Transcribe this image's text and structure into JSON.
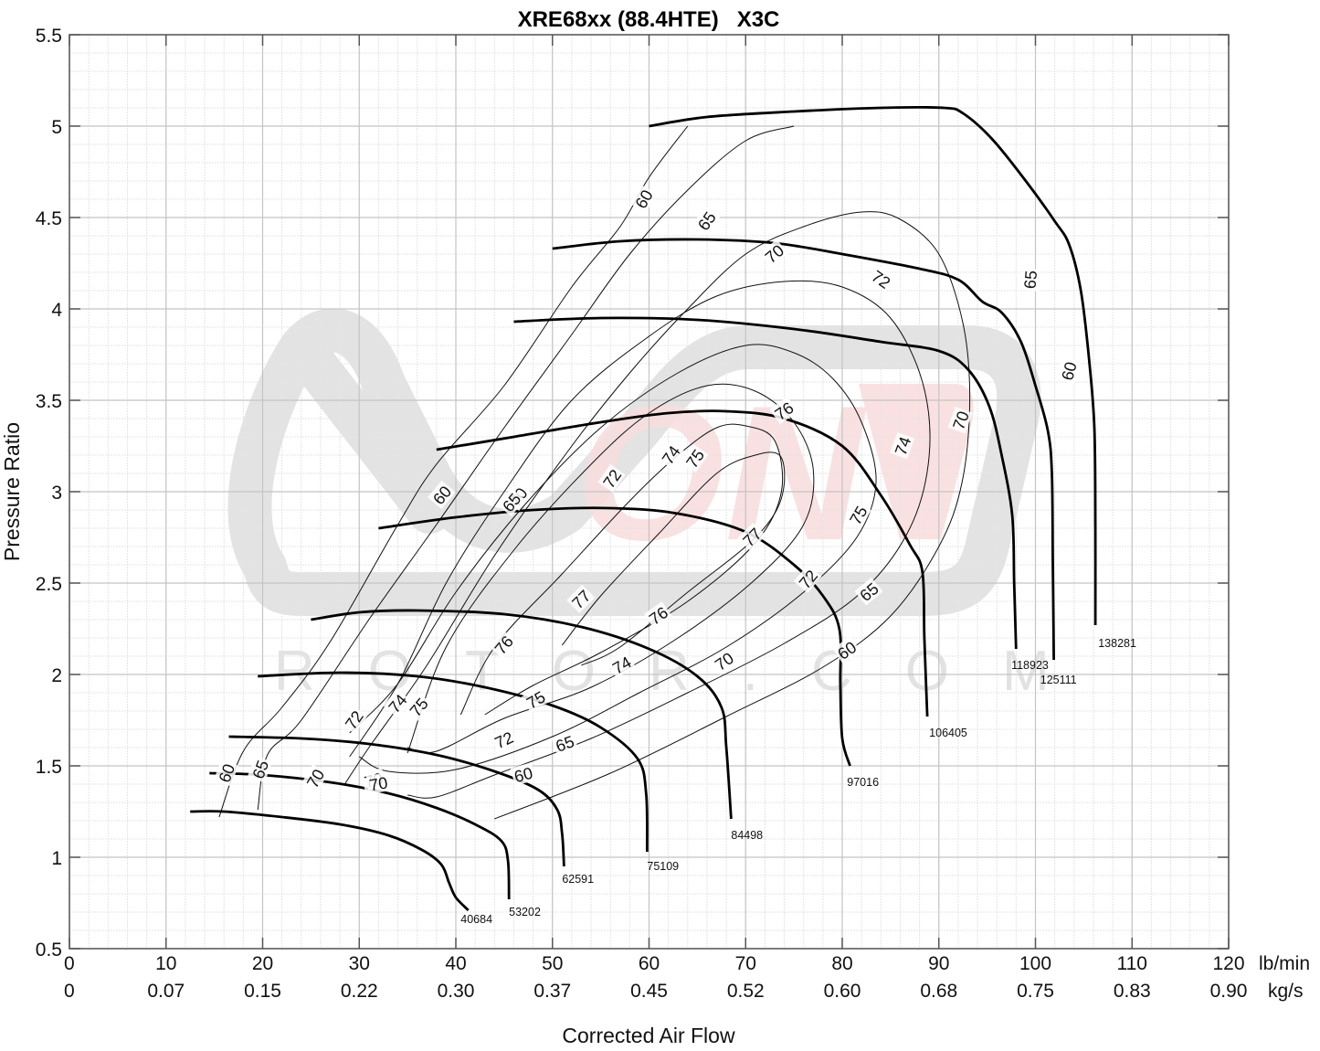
{
  "chart_data": {
    "type": "line",
    "subtype": "compressor-map",
    "title": "XRE68xx (88.4HTE)   X3C",
    "xlabel": "Corrected Air Flow",
    "ylabel": "Pressure Ratio",
    "x_unit_primary": "lb/min",
    "x_unit_secondary": "kg/s",
    "xlim": [
      0,
      120
    ],
    "ylim": [
      0.5,
      5.5
    ],
    "x_ticks": [
      0,
      10,
      20,
      30,
      40,
      50,
      60,
      70,
      80,
      90,
      100,
      110,
      120
    ],
    "x_ticks_secondary": [
      "0",
      "0.07",
      "0.15",
      "0.22",
      "0.30",
      "0.37",
      "0.45",
      "0.52",
      "0.60",
      "0.68",
      "0.75",
      "0.83",
      "0.90"
    ],
    "y_ticks": [
      "0.5",
      "1",
      "1.5",
      "2",
      "2.5",
      "3",
      "3.5",
      "4",
      "4.5",
      "5",
      "5.5"
    ],
    "grid": {
      "major": true,
      "minor": true,
      "minor_x_step": 2,
      "minor_y_step": 0.1
    },
    "legend": "none",
    "watermark": "ROTOR.COM",
    "speed_lines": [
      {
        "name": "40684",
        "label_at": [
          40.5,
          0.64
        ],
        "points": [
          [
            12.5,
            1.25
          ],
          [
            16,
            1.25
          ],
          [
            22,
            1.22
          ],
          [
            28,
            1.18
          ],
          [
            33,
            1.12
          ],
          [
            36.5,
            1.04
          ],
          [
            38.5,
            0.96
          ],
          [
            39.3,
            0.86
          ],
          [
            40,
            0.78
          ],
          [
            41.3,
            0.71
          ]
        ]
      },
      {
        "name": "53202",
        "label_at": [
          45.5,
          0.68
        ],
        "points": [
          [
            14.5,
            1.46
          ],
          [
            20,
            1.45
          ],
          [
            27,
            1.41
          ],
          [
            33,
            1.35
          ],
          [
            38,
            1.27
          ],
          [
            42,
            1.18
          ],
          [
            44.7,
            1.09
          ],
          [
            45.4,
            0.98
          ],
          [
            45.5,
            0.77
          ]
        ]
      },
      {
        "name": "62591",
        "label_at": [
          51,
          0.86
        ],
        "points": [
          [
            16.5,
            1.66
          ],
          [
            24,
            1.65
          ],
          [
            31,
            1.62
          ],
          [
            38,
            1.56
          ],
          [
            44,
            1.47
          ],
          [
            48.5,
            1.37
          ],
          [
            50.5,
            1.26
          ],
          [
            51,
            1.13
          ],
          [
            51.2,
            0.95
          ]
        ]
      },
      {
        "name": "75109",
        "label_at": [
          59.8,
          0.93
        ],
        "points": [
          [
            19.5,
            1.99
          ],
          [
            28,
            2.01
          ],
          [
            36,
            1.99
          ],
          [
            43,
            1.93
          ],
          [
            50,
            1.83
          ],
          [
            55,
            1.71
          ],
          [
            58.8,
            1.54
          ],
          [
            59.7,
            1.35
          ],
          [
            59.8,
            1.03
          ]
        ]
      },
      {
        "name": "84498",
        "label_at": [
          68.5,
          1.1
        ],
        "points": [
          [
            25,
            2.3
          ],
          [
            30,
            2.34
          ],
          [
            36,
            2.35
          ],
          [
            45,
            2.33
          ],
          [
            53,
            2.26
          ],
          [
            60,
            2.14
          ],
          [
            65,
            1.99
          ],
          [
            67.5,
            1.82
          ],
          [
            68,
            1.6
          ],
          [
            68.5,
            1.21
          ]
        ]
      },
      {
        "name": "97016",
        "label_at": [
          80.5,
          1.39
        ],
        "points": [
          [
            32,
            2.8
          ],
          [
            40,
            2.86
          ],
          [
            48,
            2.9
          ],
          [
            56,
            2.91
          ],
          [
            63,
            2.88
          ],
          [
            70,
            2.78
          ],
          [
            75,
            2.6
          ],
          [
            78,
            2.43
          ],
          [
            79.7,
            2.25
          ],
          [
            79.8,
            1.95
          ],
          [
            80,
            1.65
          ],
          [
            80.8,
            1.5
          ]
        ]
      },
      {
        "name": "106405",
        "label_at": [
          89,
          1.66
        ],
        "points": [
          [
            38,
            3.23
          ],
          [
            46,
            3.3
          ],
          [
            55,
            3.38
          ],
          [
            62,
            3.43
          ],
          [
            68,
            3.44
          ],
          [
            74,
            3.4
          ],
          [
            80,
            3.25
          ],
          [
            84,
            2.98
          ],
          [
            87,
            2.71
          ],
          [
            88.3,
            2.56
          ],
          [
            88.5,
            2.2
          ],
          [
            88.8,
            1.77
          ]
        ]
      },
      {
        "name": "118923",
        "label_at": [
          97.5,
          2.03
        ],
        "points": [
          [
            46,
            3.93
          ],
          [
            55,
            3.95
          ],
          [
            65,
            3.94
          ],
          [
            75,
            3.89
          ],
          [
            84,
            3.82
          ],
          [
            90,
            3.77
          ],
          [
            93,
            3.67
          ],
          [
            95.2,
            3.47
          ],
          [
            96.5,
            3.2
          ],
          [
            97.6,
            2.87
          ],
          [
            97.8,
            2.5
          ],
          [
            98,
            2.14
          ]
        ]
      },
      {
        "name": "125111",
        "label_at": [
          100.5,
          1.95
        ],
        "points": [
          [
            50,
            4.33
          ],
          [
            57,
            4.37
          ],
          [
            65,
            4.38
          ],
          [
            73,
            4.36
          ],
          [
            80,
            4.3
          ],
          [
            88,
            4.22
          ],
          [
            92,
            4.16
          ],
          [
            94.5,
            4.04
          ],
          [
            96.5,
            3.98
          ],
          [
            98.5,
            3.82
          ],
          [
            100,
            3.58
          ],
          [
            101.3,
            3.33
          ],
          [
            101.7,
            3.1
          ],
          [
            101.8,
            2.62
          ],
          [
            101.9,
            2.08
          ]
        ]
      },
      {
        "name": "138281",
        "label_at": [
          106.5,
          2.15
        ],
        "points": [
          [
            60,
            5.0
          ],
          [
            66,
            5.05
          ],
          [
            75,
            5.08
          ],
          [
            84,
            5.1
          ],
          [
            90.5,
            5.1
          ],
          [
            92.5,
            5.07
          ],
          [
            95.5,
            4.93
          ],
          [
            99,
            4.7
          ],
          [
            102,
            4.48
          ],
          [
            103.5,
            4.35
          ],
          [
            104.7,
            4.1
          ],
          [
            105.5,
            3.75
          ],
          [
            106.1,
            3.35
          ],
          [
            106.2,
            2.8
          ],
          [
            106.2,
            2.27
          ]
        ]
      }
    ],
    "efficiency_islands": [
      {
        "efficiency": 60,
        "points": [
          [
            15.5,
            1.22
          ],
          [
            18,
            1.58
          ],
          [
            22,
            1.82
          ],
          [
            27,
            2.18
          ],
          [
            34,
            2.82
          ],
          [
            38,
            3.15
          ],
          [
            45,
            3.58
          ],
          [
            52,
            4.12
          ],
          [
            57,
            4.45
          ],
          [
            60,
            4.72
          ],
          [
            64,
            5.0
          ]
        ],
        "label_at": [
          59.5,
          4.6
        ]
      },
      {
        "efficiency": 65,
        "points": [
          [
            19.5,
            1.26
          ],
          [
            20.5,
            1.56
          ],
          [
            24,
            1.75
          ],
          [
            31,
            2.3
          ],
          [
            38,
            2.82
          ],
          [
            45,
            3.35
          ],
          [
            52,
            3.86
          ],
          [
            58,
            4.3
          ],
          [
            64,
            4.65
          ],
          [
            70,
            4.92
          ],
          [
            75,
            5.0
          ]
        ],
        "label_at": [
          66,
          4.5
        ]
      },
      {
        "efficiency": 70,
        "points": [
          [
            28.5,
            1.4
          ],
          [
            31,
            1.6
          ],
          [
            37,
            2.05
          ],
          [
            44,
            2.65
          ],
          [
            52,
            3.25
          ],
          [
            58,
            3.65
          ],
          [
            64,
            4.0
          ],
          [
            70,
            4.3
          ],
          [
            76,
            4.45
          ],
          [
            82,
            4.53
          ],
          [
            86,
            4.49
          ],
          [
            90,
            4.3
          ],
          [
            92.5,
            3.92
          ],
          [
            93.2,
            3.5
          ],
          [
            92.4,
            3.05
          ],
          [
            90,
            2.7
          ],
          [
            85,
            2.32
          ],
          [
            78,
            2.04
          ],
          [
            68,
            1.77
          ],
          [
            56,
            1.46
          ],
          [
            44,
            1.21
          ]
        ]
      },
      {
        "efficiency": 72,
        "points": [
          [
            29,
            1.55
          ],
          [
            34,
            1.95
          ],
          [
            39,
            2.5
          ],
          [
            45,
            3.0
          ],
          [
            52,
            3.5
          ],
          [
            60,
            3.85
          ],
          [
            67,
            4.07
          ],
          [
            74,
            4.15
          ],
          [
            80,
            4.12
          ],
          [
            85,
            3.95
          ],
          [
            88.3,
            3.6
          ],
          [
            89,
            3.2
          ],
          [
            87,
            2.8
          ],
          [
            82,
            2.45
          ],
          [
            74,
            2.17
          ],
          [
            64,
            1.9
          ],
          [
            54,
            1.65
          ],
          [
            44,
            1.45
          ],
          [
            38,
            1.33
          ],
          [
            35,
            1.34
          ]
        ]
      },
      {
        "efficiency": 74,
        "points": [
          [
            29,
            1.68
          ],
          [
            34,
            1.95
          ],
          [
            40,
            2.45
          ],
          [
            47,
            2.92
          ],
          [
            55,
            3.35
          ],
          [
            63,
            3.65
          ],
          [
            70,
            3.8
          ],
          [
            75,
            3.76
          ],
          [
            79,
            3.62
          ],
          [
            82,
            3.38
          ],
          [
            83.5,
            3.05
          ],
          [
            81.5,
            2.75
          ],
          [
            76,
            2.45
          ],
          [
            68,
            2.15
          ],
          [
            59,
            1.9
          ],
          [
            50,
            1.66
          ],
          [
            40,
            1.48
          ],
          [
            33,
            1.47
          ],
          [
            30,
            1.55
          ]
        ]
      },
      {
        "efficiency": 75,
        "points": [
          [
            35,
            1.57
          ],
          [
            39,
            2.15
          ],
          [
            46,
            2.68
          ],
          [
            54,
            3.15
          ],
          [
            60,
            3.43
          ],
          [
            66,
            3.58
          ],
          [
            71,
            3.55
          ],
          [
            75,
            3.38
          ],
          [
            77,
            3.12
          ],
          [
            76,
            2.82
          ],
          [
            71,
            2.52
          ],
          [
            63,
            2.2
          ],
          [
            54,
            1.93
          ],
          [
            45,
            1.76
          ],
          [
            38,
            1.58
          ],
          [
            35,
            1.6
          ]
        ]
      },
      {
        "efficiency": 76,
        "points": [
          [
            40.5,
            1.78
          ],
          [
            44,
            2.15
          ],
          [
            51,
            2.55
          ],
          [
            58,
            2.95
          ],
          [
            63,
            3.2
          ],
          [
            67,
            3.35
          ],
          [
            70,
            3.36
          ],
          [
            73,
            3.28
          ],
          [
            73.7,
            3.0
          ],
          [
            71,
            2.72
          ],
          [
            64,
            2.4
          ],
          [
            55,
            2.12
          ],
          [
            48,
            1.94
          ],
          [
            43,
            1.78
          ]
        ]
      },
      {
        "efficiency": 77,
        "points": [
          [
            51,
            2.16
          ],
          [
            55,
            2.43
          ],
          [
            61,
            2.77
          ],
          [
            67,
            3.1
          ],
          [
            71,
            3.2
          ],
          [
            73.5,
            3.2
          ],
          [
            74,
            3.05
          ],
          [
            73,
            2.88
          ],
          [
            70,
            2.7
          ],
          [
            64,
            2.45
          ],
          [
            57,
            2.15
          ],
          [
            53,
            2.05
          ]
        ]
      }
    ]
  },
  "ui": {
    "title": "XRE68xx (88.4HTE)   X3C",
    "xlabel": "Corrected Air Flow",
    "ylabel": "Pressure Ratio",
    "unit_primary": "lb/min",
    "unit_secondary": "kg/s",
    "watermark_text": "ROTOR.COM",
    "colors": {
      "line": "#000000",
      "grid_major": "#c8c8c8",
      "grid_minor": "#e2e2e2",
      "axis": "#555555",
      "watermark_gray": "#e0e0e0",
      "watermark_red": "#f7d8d8"
    }
  }
}
